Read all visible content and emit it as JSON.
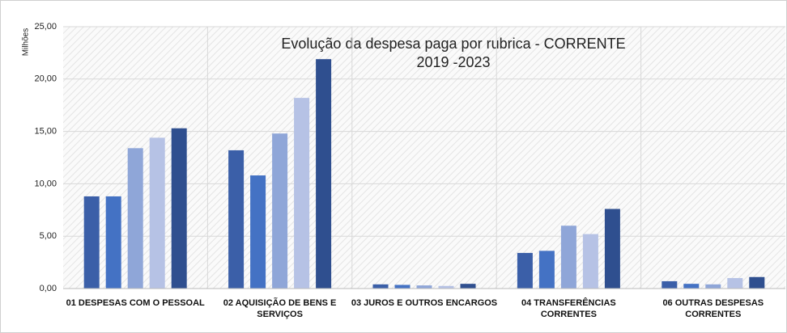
{
  "chart_data": {
    "type": "bar",
    "title": "Evolução da despesa paga por rubrica - CORRENTE",
    "subtitle": "2019 -2023",
    "y_label": "Milhões",
    "categories": [
      "01 DESPESAS COM O PESSOAL",
      "02 AQUISIÇÃO DE BENS E SERVIÇOS",
      "03 JUROS E OUTROS ENCARGOS",
      "04 TRANSFERÊNCIAS CORRENTES",
      "06 OUTRAS DESPESAS CORRENTES"
    ],
    "series": [
      {
        "color": "#3b5fa8",
        "values": [
          8.8,
          13.2,
          0.4,
          3.4,
          0.7
        ]
      },
      {
        "color": "#4472c4",
        "values": [
          8.8,
          10.8,
          0.35,
          3.6,
          0.45
        ]
      },
      {
        "color": "#8fa6d8",
        "values": [
          13.4,
          14.8,
          0.3,
          6.0,
          0.4
        ]
      },
      {
        "color": "#b6c2e5",
        "values": [
          14.4,
          18.2,
          0.25,
          5.2,
          1.0
        ]
      },
      {
        "color": "#2f4f8f",
        "values": [
          15.3,
          21.9,
          0.45,
          7.6,
          1.1
        ]
      }
    ],
    "ylim": [
      0,
      25
    ],
    "yticks": [
      {
        "value": 0,
        "label": "0,00"
      },
      {
        "value": 5,
        "label": "5,00"
      },
      {
        "value": 10,
        "label": "10,00"
      },
      {
        "value": 15,
        "label": "15,00"
      },
      {
        "value": 20,
        "label": "20,00"
      },
      {
        "value": 25,
        "label": "25,00"
      }
    ],
    "grid": true
  }
}
